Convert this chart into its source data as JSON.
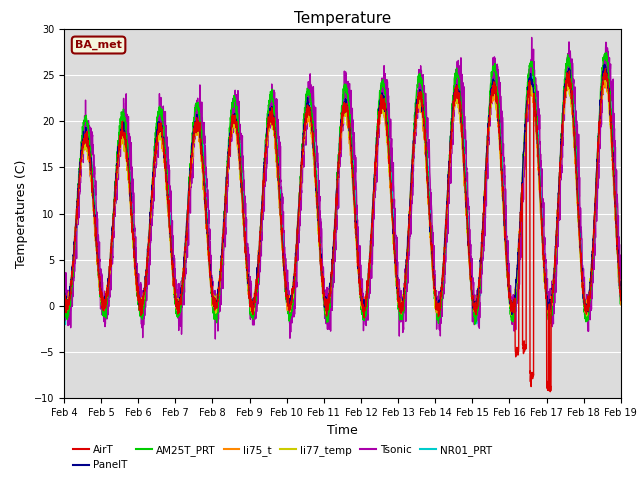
{
  "title": "Temperature",
  "xlabel": "Time",
  "ylabel": "Temperatures (C)",
  "ylim": [
    -10,
    30
  ],
  "background_color": "#dcdcdc",
  "fig_background": "#ffffff",
  "station_label": "BA_met",
  "x_tick_labels": [
    "Feb 4",
    "Feb 5",
    "Feb 6",
    "Feb 7",
    "Feb 8",
    "Feb 9",
    "Feb 10",
    "Feb 11",
    "Feb 12",
    "Feb 13",
    "Feb 14",
    "Feb 15",
    "Feb 16",
    "Feb 17",
    "Feb 18",
    "Feb 19"
  ],
  "series": {
    "AirT": {
      "color": "#dd0000",
      "lw": 1.0
    },
    "PanelT": {
      "color": "#00008b",
      "lw": 1.0
    },
    "AM25T_PRT": {
      "color": "#00cc00",
      "lw": 1.0
    },
    "li75_t": {
      "color": "#ff8800",
      "lw": 1.0
    },
    "li77_temp": {
      "color": "#cccc00",
      "lw": 1.0
    },
    "Tsonic": {
      "color": "#aa00aa",
      "lw": 1.0
    },
    "NR01_PRT": {
      "color": "#00cccc",
      "lw": 1.2
    }
  },
  "legend_order": [
    "AirT",
    "PanelT",
    "AM25T_PRT",
    "li75_t",
    "li77_temp",
    "Tsonic",
    "NR01_PRT"
  ]
}
